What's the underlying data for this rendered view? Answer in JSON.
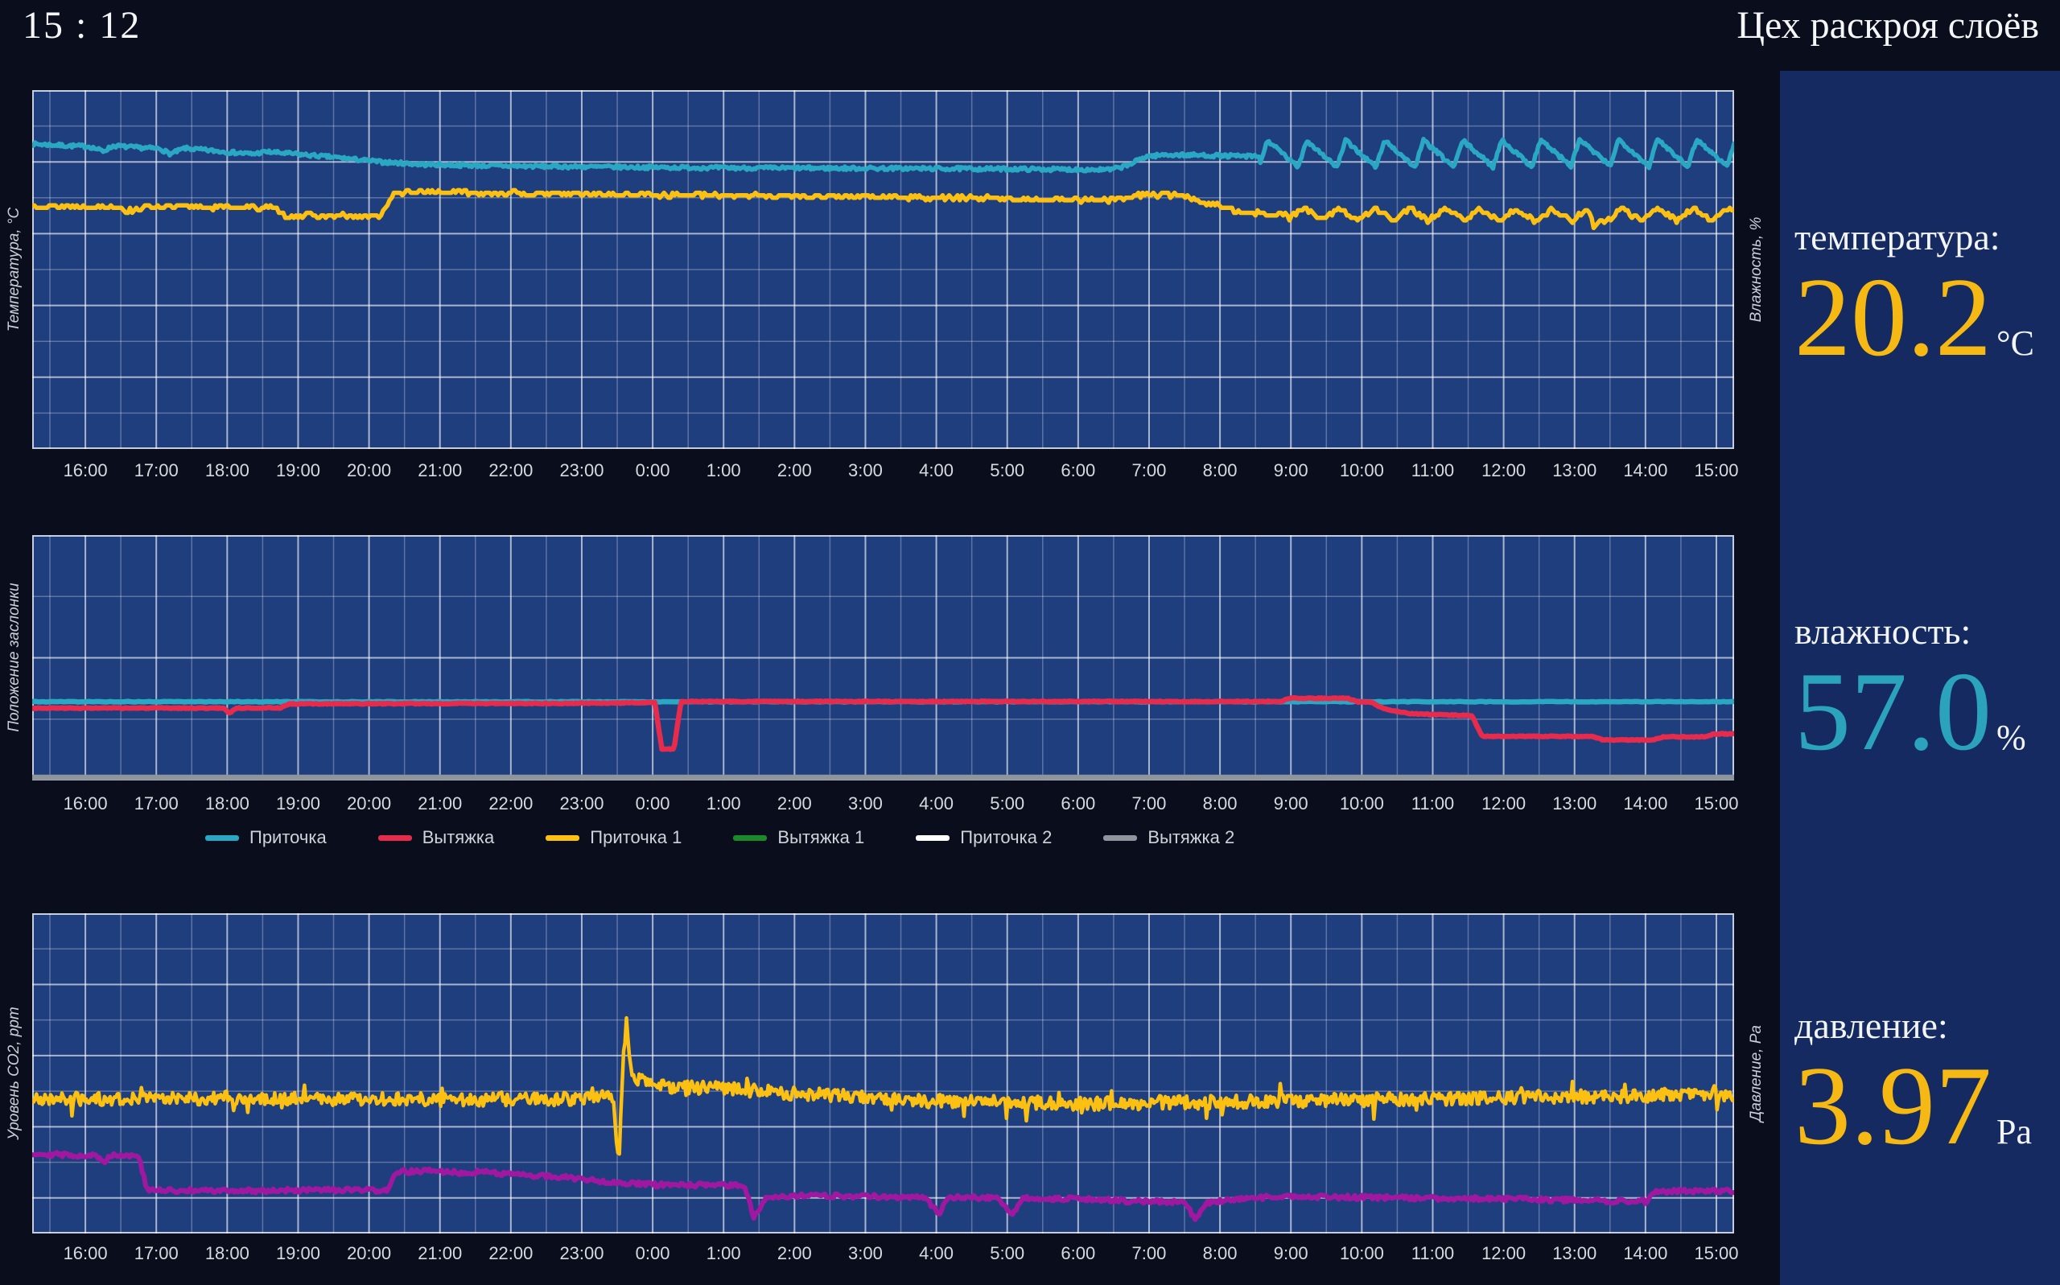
{
  "header": {
    "clock": "15 : 12",
    "title": "Цех раскроя слоёв"
  },
  "colors": {
    "page_bg": "#0a0e1c",
    "panel_bg": "#142a60",
    "plot_bg": "#1f3e7e",
    "grid_minor": "rgba(255,255,255,0.28)",
    "grid_major": "rgba(255,255,255,0.62)",
    "plot_border": "rgba(255,255,255,0.75)",
    "accent_yellow": "#f6b813",
    "accent_cyan": "#2ba3bd"
  },
  "sidebar": {
    "metrics": [
      {
        "id": "temperature",
        "label": "температура:",
        "value": "20.2",
        "unit": "°C",
        "value_color": "#f6b813"
      },
      {
        "id": "humidity",
        "label": "влажность:",
        "value": "57.0",
        "unit": "%",
        "value_color": "#2ba3bd"
      },
      {
        "id": "pressure",
        "label": "давление:",
        "value": "3.97",
        "unit": "Pa",
        "value_color": "#f6b813"
      }
    ]
  },
  "chart_data": {
    "type": "line",
    "x_axis": {
      "tick_labels": [
        "16:00",
        "17:00",
        "18:00",
        "19:00",
        "20:00",
        "21:00",
        "22:00",
        "23:00",
        "0:00",
        "1:00",
        "2:00",
        "3:00",
        "4:00",
        "5:00",
        "6:00",
        "7:00",
        "8:00",
        "9:00",
        "10:00",
        "11:00",
        "12:00",
        "13:00",
        "14:00",
        "15:00"
      ],
      "tick_positions_hours": [
        0.75,
        1.75,
        2.75,
        3.75,
        4.75,
        5.75,
        6.75,
        7.75,
        8.75,
        9.75,
        10.75,
        11.75,
        12.75,
        13.75,
        14.75,
        15.75,
        16.75,
        17.75,
        18.75,
        19.75,
        20.75,
        21.75,
        22.75,
        23.75
      ],
      "domain_hours": [
        0,
        24
      ],
      "grid": "on, minor line each 30 min, major each hour"
    },
    "y_scale": "normalized 0..1 of plot height (no numeric y tick labels are visible in the screenshot)",
    "charts": [
      {
        "id": "temperature-humidity",
        "left_axis_label": "Температура, °C",
        "right_axis_label": "Влажность, %",
        "h_rows": 10,
        "series": [
          {
            "name": "humidity",
            "color": "#2aa7c2",
            "width": 5.5,
            "seed": 7,
            "noise": 0.005,
            "dt": 0.02,
            "points": [
              [
                0,
                0.85
              ],
              [
                0.5,
                0.845
              ],
              [
                0.8,
                0.843
              ],
              [
                1.0,
                0.83
              ],
              [
                1.15,
                0.845
              ],
              [
                1.45,
                0.84
              ],
              [
                1.8,
                0.837
              ],
              [
                1.95,
                0.822
              ],
              [
                2.15,
                0.838
              ],
              [
                2.6,
                0.83
              ],
              [
                3.1,
                0.822
              ],
              [
                3.3,
                0.828
              ],
              [
                3.7,
                0.822
              ],
              [
                4.3,
                0.812
              ],
              [
                4.9,
                0.8
              ],
              [
                5.5,
                0.793
              ],
              [
                6.5,
                0.789
              ],
              [
                8.0,
                0.786
              ],
              [
                10.0,
                0.783
              ],
              [
                12.0,
                0.782
              ],
              [
                14.0,
                0.78
              ],
              [
                15.2,
                0.778
              ],
              [
                15.45,
                0.79
              ],
              [
                15.7,
                0.815
              ],
              [
                16.0,
                0.82
              ],
              [
                16.6,
                0.818
              ],
              [
                17.25,
                0.815
              ],
              [
                20.0,
                0.815
              ],
              [
                22.0,
                0.818
              ],
              [
                24,
                0.818
              ]
            ],
            "osc": {
              "from": 17.3,
              "period": 0.55,
              "amp": 0.075,
              "attack": 0.22
            }
          },
          {
            "name": "temperature",
            "color": "#fcc012",
            "width": 5.5,
            "seed": 13,
            "noise": 0.006,
            "quant": 0.007,
            "dt": 0.03,
            "points": [
              [
                0,
                0.678
              ],
              [
                0.3,
                0.676
              ],
              [
                1.2,
                0.675
              ],
              [
                1.35,
                0.662
              ],
              [
                1.6,
                0.675
              ],
              [
                2.9,
                0.673
              ],
              [
                3.4,
                0.672
              ],
              [
                3.55,
                0.651
              ],
              [
                4.9,
                0.648
              ],
              [
                5.1,
                0.712
              ],
              [
                5.5,
                0.717
              ],
              [
                7.0,
                0.712
              ],
              [
                9.0,
                0.708
              ],
              [
                11.0,
                0.704
              ],
              [
                13.0,
                0.7
              ],
              [
                14.9,
                0.694
              ],
              [
                15.3,
                0.694
              ],
              [
                15.55,
                0.708
              ],
              [
                16.2,
                0.708
              ],
              [
                16.5,
                0.69
              ],
              [
                17.0,
                0.662
              ],
              [
                17.6,
                0.652
              ],
              [
                19.0,
                0.65
              ],
              [
                21.0,
                0.648
              ],
              [
                21.95,
                0.648
              ],
              [
                22.02,
                0.607
              ],
              [
                22.15,
                0.648
              ],
              [
                24,
                0.652
              ]
            ],
            "osc": {
              "from": 17.7,
              "period": 0.5,
              "amp": 0.034,
              "attack": 0.45
            }
          }
        ]
      },
      {
        "id": "damper-position",
        "left_axis_label": "Положение заслонки",
        "right_axis_label": "",
        "h_rows": 4,
        "series": [
          {
            "name": "Приточка",
            "color": "#2aa7c2",
            "width": 6.5,
            "seed": 5,
            "noise": 0.0015,
            "dt": 0.05,
            "points": [
              [
                0,
                0.321
              ],
              [
                24,
                0.321
              ]
            ]
          },
          {
            "name": "Вытяжка",
            "color": "#e62b4c",
            "width": 6.5,
            "seed": 3,
            "noise": 0.002,
            "dt": 0.02,
            "points": [
              [
                0,
                0.295
              ],
              [
                2.7,
                0.295
              ],
              [
                2.78,
                0.275
              ],
              [
                2.88,
                0.295
              ],
              [
                3.5,
                0.296
              ],
              [
                3.62,
                0.312
              ],
              [
                8.0,
                0.315
              ],
              [
                8.78,
                0.318
              ],
              [
                8.88,
                0.128
              ],
              [
                9.05,
                0.128
              ],
              [
                9.15,
                0.322
              ],
              [
                17.6,
                0.322
              ],
              [
                17.75,
                0.335
              ],
              [
                18.55,
                0.335
              ],
              [
                18.7,
                0.32
              ],
              [
                18.9,
                0.318
              ],
              [
                19.0,
                0.3
              ],
              [
                19.15,
                0.285
              ],
              [
                19.45,
                0.272
              ],
              [
                19.8,
                0.268
              ],
              [
                20.3,
                0.265
              ],
              [
                20.45,
                0.18
              ],
              [
                22.0,
                0.18
              ],
              [
                22.15,
                0.165
              ],
              [
                22.85,
                0.165
              ],
              [
                23.0,
                0.178
              ],
              [
                23.6,
                0.178
              ],
              [
                23.72,
                0.19
              ],
              [
                24,
                0.19
              ]
            ]
          },
          {
            "name": "Вытяжка 2",
            "color": "#8e959c",
            "width": 7,
            "seed": 9,
            "noise": 0,
            "dt": 0.5,
            "points": [
              [
                0,
                0.012
              ],
              [
                24,
                0.012
              ]
            ]
          }
        ],
        "legend": [
          {
            "label": "Приточка",
            "color": "#2aa7c2"
          },
          {
            "label": "Вытяжка",
            "color": "#e62b4c"
          },
          {
            "label": "Приточка 1",
            "color": "#fcc012"
          },
          {
            "label": "Вытяжка 1",
            "color": "#1b8a2b"
          },
          {
            "label": "Приточка 2",
            "color": "#ffffff"
          },
          {
            "label": "Вытяжка 2",
            "color": "#8e959c"
          }
        ]
      },
      {
        "id": "co2-pressure",
        "left_axis_label": "Уровень CO2, ppm",
        "right_axis_label": "Давление, Pa",
        "h_rows": 9,
        "series": [
          {
            "name": "co2",
            "color": "#fcc012",
            "width": 4.5,
            "seed": 21,
            "noise": 0.021,
            "spike_prob": 0.05,
            "spike_amp": 0.045,
            "dt": 0.02,
            "points": [
              [
                0,
                0.42
              ],
              [
                2.0,
                0.423
              ],
              [
                4.0,
                0.42
              ],
              [
                6.0,
                0.418
              ],
              [
                8.2,
                0.422
              ],
              [
                8.27,
                0.21
              ],
              [
                8.33,
                0.52
              ],
              [
                8.38,
                0.665
              ],
              [
                8.45,
                0.5
              ],
              [
                8.6,
                0.475
              ],
              [
                9.0,
                0.455
              ],
              [
                9.6,
                0.455
              ],
              [
                10.5,
                0.44
              ],
              [
                11.5,
                0.43
              ],
              [
                12.5,
                0.415
              ],
              [
                13.5,
                0.41
              ],
              [
                15.0,
                0.405
              ],
              [
                16.5,
                0.41
              ],
              [
                18.0,
                0.415
              ],
              [
                19.5,
                0.42
              ],
              [
                21.0,
                0.425
              ],
              [
                22.5,
                0.43
              ],
              [
                24,
                0.435
              ]
            ]
          },
          {
            "name": "pressure",
            "color": "#a118a0",
            "width": 6,
            "seed": 29,
            "noise": 0.007,
            "dt": 0.025,
            "points": [
              [
                0,
                0.25
              ],
              [
                0.5,
                0.245
              ],
              [
                0.9,
                0.243
              ],
              [
                1.0,
                0.222
              ],
              [
                1.12,
                0.246
              ],
              [
                1.5,
                0.242
              ],
              [
                1.62,
                0.135
              ],
              [
                2.5,
                0.133
              ],
              [
                4.0,
                0.135
              ],
              [
                5.0,
                0.135
              ],
              [
                5.15,
                0.192
              ],
              [
                5.6,
                0.196
              ],
              [
                6.0,
                0.19
              ],
              [
                6.4,
                0.193
              ],
              [
                6.9,
                0.182
              ],
              [
                7.5,
                0.176
              ],
              [
                8.2,
                0.16
              ],
              [
                8.75,
                0.152
              ],
              [
                9.9,
                0.15
              ],
              [
                10.05,
                0.148
              ],
              [
                10.17,
                0.05
              ],
              [
                10.35,
                0.115
              ],
              [
                11.0,
                0.118
              ],
              [
                12.0,
                0.115
              ],
              [
                12.6,
                0.113
              ],
              [
                12.78,
                0.06
              ],
              [
                12.92,
                0.113
              ],
              [
                13.6,
                0.112
              ],
              [
                13.82,
                0.06
              ],
              [
                13.97,
                0.11
              ],
              [
                14.8,
                0.108
              ],
              [
                15.6,
                0.1
              ],
              [
                16.25,
                0.098
              ],
              [
                16.4,
                0.045
              ],
              [
                16.55,
                0.095
              ],
              [
                17.2,
                0.112
              ],
              [
                18.0,
                0.115
              ],
              [
                19.0,
                0.112
              ],
              [
                20.0,
                0.11
              ],
              [
                21.0,
                0.107
              ],
              [
                22.0,
                0.103
              ],
              [
                22.75,
                0.1
              ],
              [
                22.9,
                0.132
              ],
              [
                24,
                0.133
              ]
            ]
          }
        ]
      }
    ]
  }
}
